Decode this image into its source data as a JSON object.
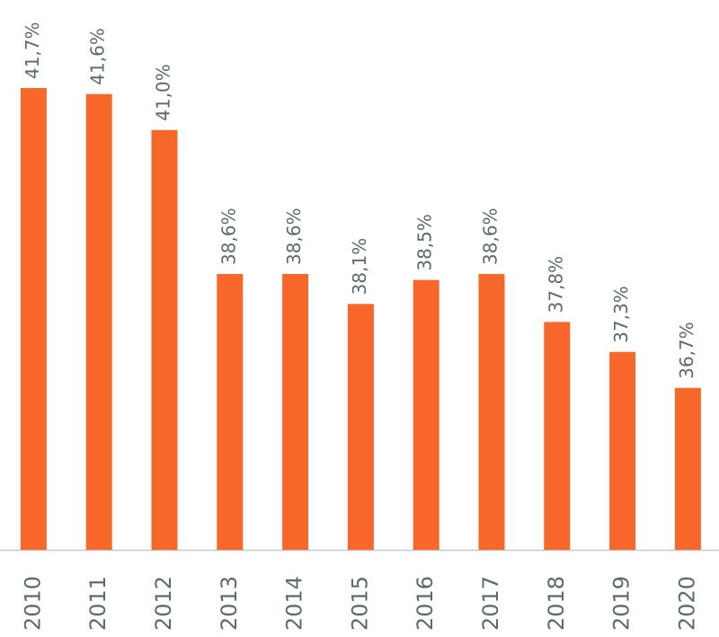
{
  "chart_data": {
    "type": "bar",
    "categories": [
      "2010",
      "2011",
      "2012",
      "2013",
      "2014",
      "2015",
      "2016",
      "2017",
      "2018",
      "2019",
      "2020"
    ],
    "values": [
      41.7,
      41.6,
      41.0,
      38.6,
      38.6,
      38.1,
      38.5,
      38.6,
      37.8,
      37.3,
      36.7
    ],
    "value_labels": [
      "41,7%",
      "41,6%",
      "41,0%",
      "38,6%",
      "38,6%",
      "38,1%",
      "38,5%",
      "38,6%",
      "37,8%",
      "37,3%",
      "36,7%"
    ],
    "color": "#f7672a",
    "ylim": [
      34,
      42
    ]
  }
}
